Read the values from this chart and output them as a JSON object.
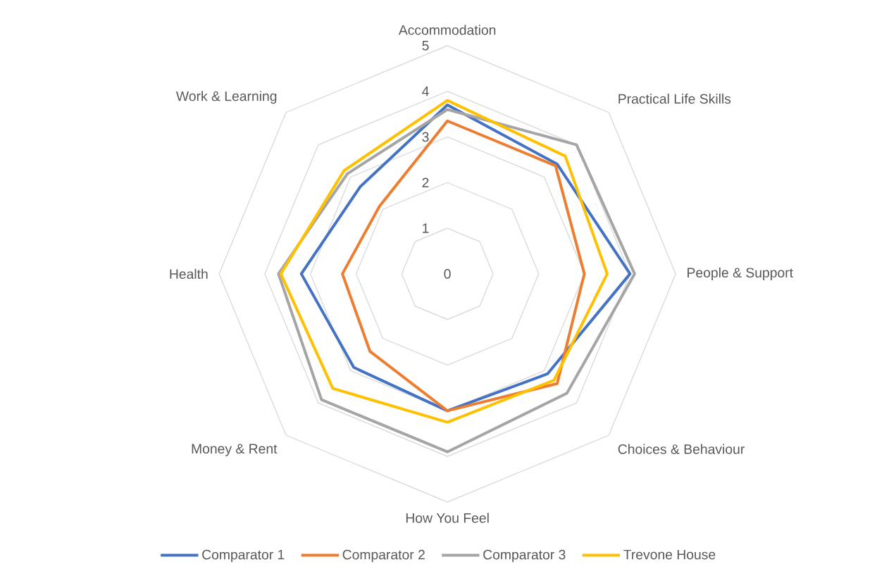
{
  "chart_data": {
    "type": "radar",
    "categories": [
      "Accommodation",
      "Practical Life Skills",
      "People & Support",
      "Choices & Behaviour",
      "How You Feel",
      "Money & Rent",
      "Health",
      "Work & Learning"
    ],
    "series": [
      {
        "name": "Comparator 1",
        "color": "#4472c4",
        "values": [
          3.7,
          3.4,
          4.0,
          3.1,
          3.0,
          2.9,
          3.2,
          2.7
        ]
      },
      {
        "name": "Comparator 2",
        "color": "#ed7d31",
        "values": [
          3.35,
          3.35,
          3.0,
          3.4,
          3.0,
          2.4,
          2.3,
          2.1
        ]
      },
      {
        "name": "Comparator 3",
        "color": "#a5a5a5",
        "values": [
          3.6,
          4.0,
          4.1,
          3.7,
          3.9,
          3.9,
          3.7,
          3.1
        ]
      },
      {
        "name": "Trevone House",
        "color": "#ffc000",
        "values": [
          3.8,
          3.65,
          3.5,
          3.3,
          3.25,
          3.55,
          3.65,
          3.2
        ]
      }
    ],
    "ylim": [
      0,
      5
    ],
    "yticks": [
      0,
      1,
      2,
      3,
      4,
      5
    ],
    "grid": true,
    "legend": "bottom"
  }
}
